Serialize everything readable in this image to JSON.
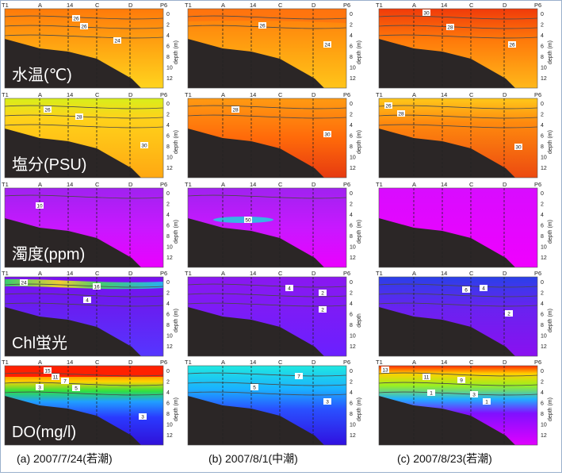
{
  "chart_data": {
    "type": "heatmap",
    "description_rows": [
      "temperature",
      "salinity",
      "turbidity",
      "chl",
      "do"
    ],
    "stations": [
      "T1",
      "A",
      "14",
      "C",
      "D",
      "P6"
    ],
    "depth_ticks": [
      "0",
      "2",
      "4",
      "6",
      "8",
      "10",
      "12"
    ],
    "depth_axis_label": "depth (m)",
    "depth_axis_label_short": "depth",
    "row_labels": [
      "水温(℃)",
      "塩分(PSU)",
      "濁度(ppm)",
      "Chl蛍光",
      "DO(mg/l)"
    ],
    "column_captions": [
      "(a) 2007/7/24(若潮)",
      "(b) 2007/8/1(中潮)",
      "(c) 2007/8/23(若潮)"
    ],
    "contour_labels": {
      "temperature": [
        [
          "26",
          "26",
          "24"
        ],
        [
          "26",
          "24"
        ],
        [
          "30",
          "28",
          "26"
        ]
      ],
      "salinity": [
        [
          "26",
          "28",
          "30"
        ],
        [
          "28",
          "30"
        ],
        [
          "26",
          "28",
          "30"
        ]
      ],
      "turbidity": [
        [
          "10"
        ],
        [
          "50"
        ],
        []
      ],
      "chl": [
        [
          "24",
          "16",
          "4"
        ],
        [
          "4",
          "2",
          "2"
        ],
        [
          "6",
          "4",
          "2"
        ]
      ],
      "do": [
        [
          "15",
          "11",
          "7",
          "3",
          "5",
          "3"
        ],
        [
          "7",
          "5",
          "3"
        ],
        [
          "13",
          "11",
          "9",
          "1",
          "3",
          "1"
        ]
      ]
    },
    "colors": {
      "temperature": [
        "#ff6a00",
        "#ffc21a"
      ],
      "salinity": [
        "#ffd21a",
        "#e43a10"
      ],
      "turbidity": [
        "#8a2be2",
        "#ee00ff"
      ],
      "chl": [
        "#7a18f0",
        "#5538ff"
      ],
      "do": [
        "#ff1a00",
        "#2a4cff",
        "#3010e0"
      ],
      "seabed": "#2b2626"
    }
  }
}
